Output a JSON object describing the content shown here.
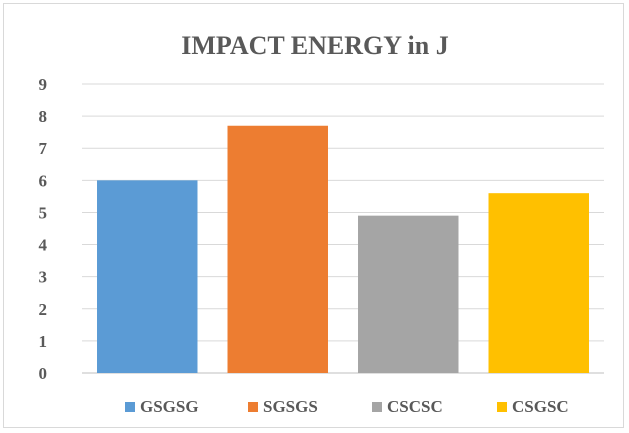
{
  "chart_data": {
    "type": "bar",
    "title": "IMPACT ENERGY in J",
    "xlabel": "",
    "ylabel": "",
    "categories": [
      "GSGSG",
      "SGSGS",
      "CSCSC",
      "CSGSC"
    ],
    "values": [
      6.0,
      7.7,
      4.9,
      5.6
    ],
    "colors": [
      "#5b9bd5",
      "#ed7d31",
      "#a5a5a5",
      "#ffc000"
    ],
    "ylim": [
      0,
      9
    ],
    "yticks": [
      "0",
      "1",
      "2",
      "3",
      "4",
      "5",
      "6",
      "7",
      "8",
      "9"
    ],
    "grid": true,
    "legend": "bottom"
  }
}
